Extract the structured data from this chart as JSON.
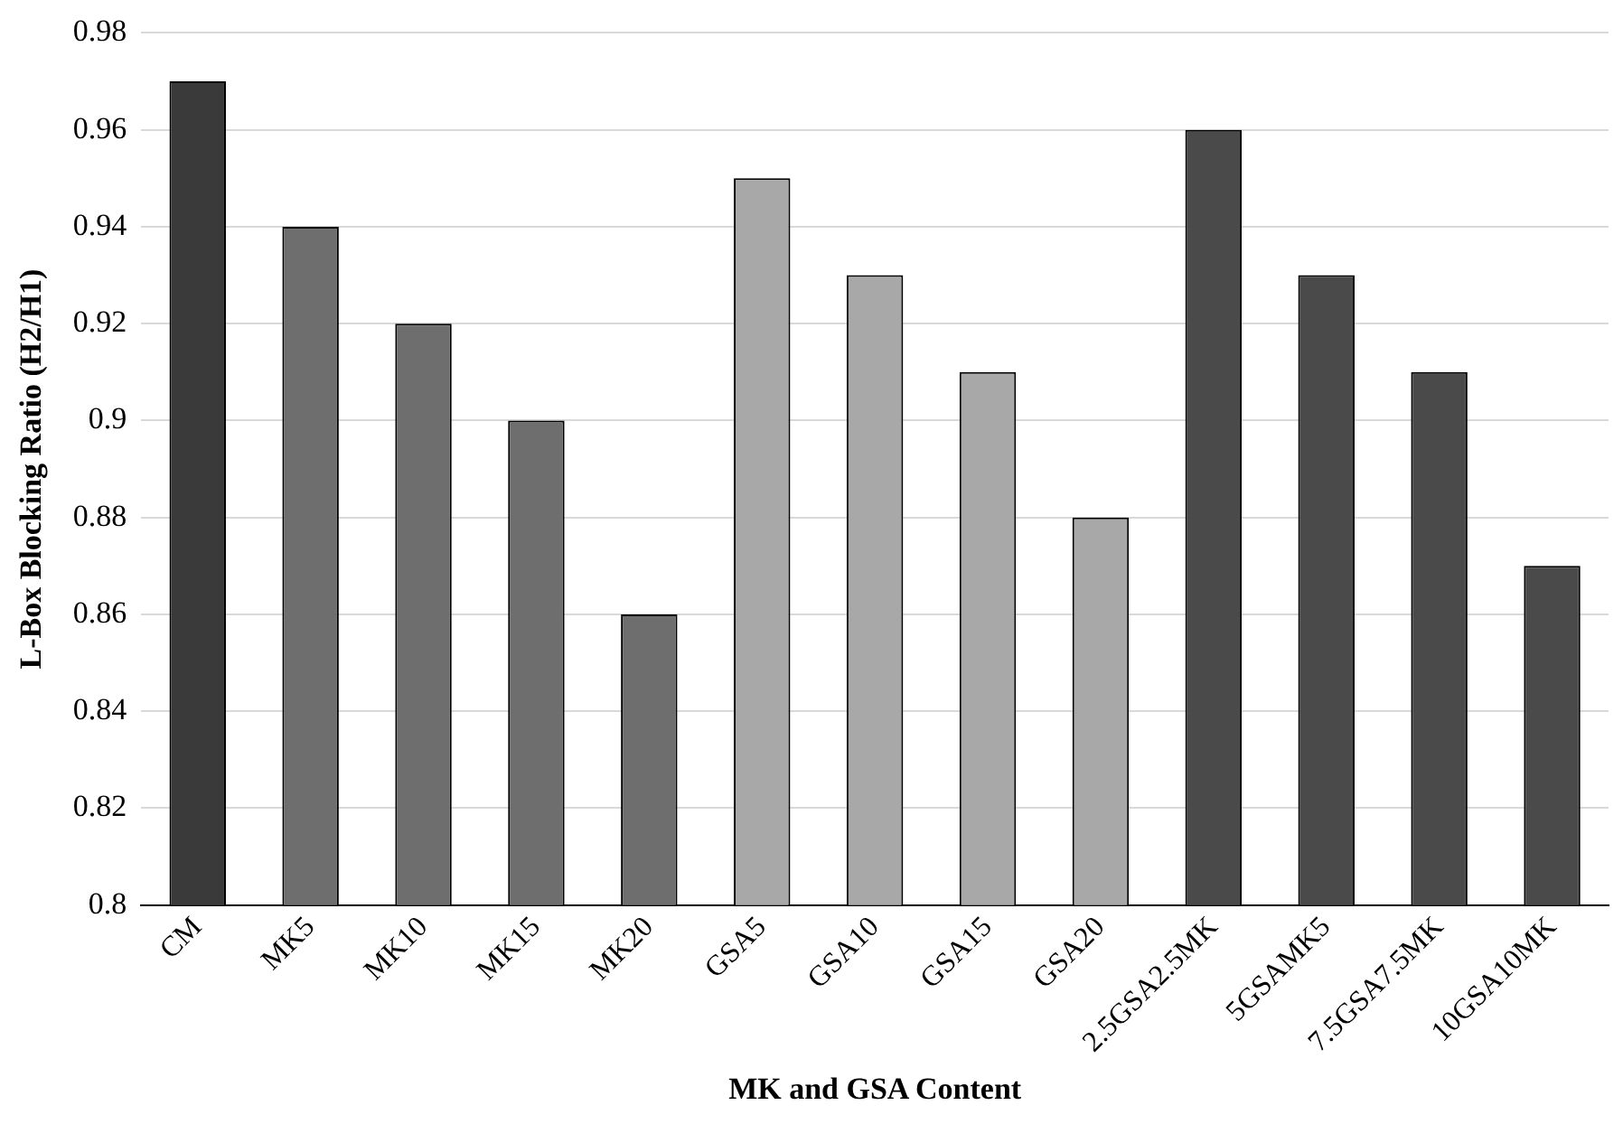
{
  "chart_data": {
    "type": "bar",
    "xlabel": "MK and GSA Content",
    "ylabel": "L-Box Blocking Ratio (H2/H1)",
    "categories": [
      "CM",
      "MK5",
      "MK10",
      "MK15",
      "MK20",
      "GSA5",
      "GSA10",
      "GSA15",
      "GSA20",
      "2.5GSA2.5MK",
      "5GSAMK5",
      "7.5GSA7.5MK",
      "10GSA10MK"
    ],
    "values": [
      0.97,
      0.94,
      0.92,
      0.9,
      0.86,
      0.95,
      0.93,
      0.91,
      0.88,
      0.96,
      0.93,
      0.91,
      0.87
    ],
    "colors": [
      "#3a3a3a",
      "#6e6e6e",
      "#6e6e6e",
      "#6e6e6e",
      "#6e6e6e",
      "#a8a8a8",
      "#a8a8a8",
      "#a8a8a8",
      "#a8a8a8",
      "#4a4a4a",
      "#4a4a4a",
      "#4a4a4a",
      "#4a4a4a"
    ],
    "ylim": [
      0.8,
      0.98
    ],
    "yticks": [
      0.8,
      0.82,
      0.84,
      0.86,
      0.88,
      0.9,
      0.92,
      0.94,
      0.96,
      0.98
    ],
    "grid": "y",
    "legend": false
  }
}
